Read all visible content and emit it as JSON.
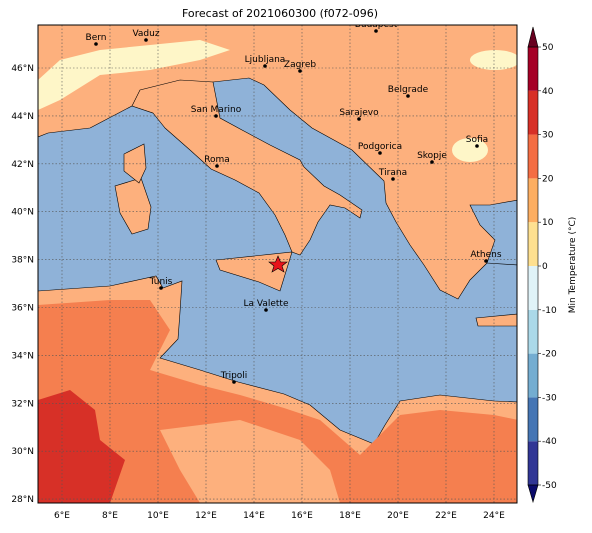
{
  "title": "Forecast of 2021060300 (f072-096)",
  "map": {
    "lon_labels": [
      "6°E",
      "8°E",
      "10°E",
      "12°E",
      "14°E",
      "16°E",
      "18°E",
      "20°E",
      "22°E",
      "24°E"
    ],
    "lat_labels": [
      "28°N",
      "30°N",
      "32°N",
      "34°N",
      "36°N",
      "38°N",
      "40°N",
      "42°N",
      "44°N",
      "46°N"
    ],
    "cities": [
      "Bern",
      "Vaduz",
      "Budapest",
      "Ljubljana",
      "Zagreb",
      "San Marino",
      "Belgrade",
      "Sarajevo",
      "Sofia",
      "Podgorica",
      "Skopje",
      "Roma",
      "Tirana",
      "Athens",
      "Tunis",
      "La Valette",
      "Tripoli"
    ]
  },
  "colorbar": {
    "label": "Min Temperature (°C)",
    "ticks": [
      -50,
      -40,
      -30,
      -20,
      -10,
      0,
      10,
      20,
      30,
      40,
      50
    ],
    "colors": [
      "#313695",
      "#4575b4",
      "#74add1",
      "#abd9e9",
      "#e0f3f8",
      "#fee090",
      "#fdae61",
      "#f46d43",
      "#d73027",
      "#a50026"
    ],
    "extend_colors": [
      "#0b0b6b",
      "#67001f"
    ]
  }
}
